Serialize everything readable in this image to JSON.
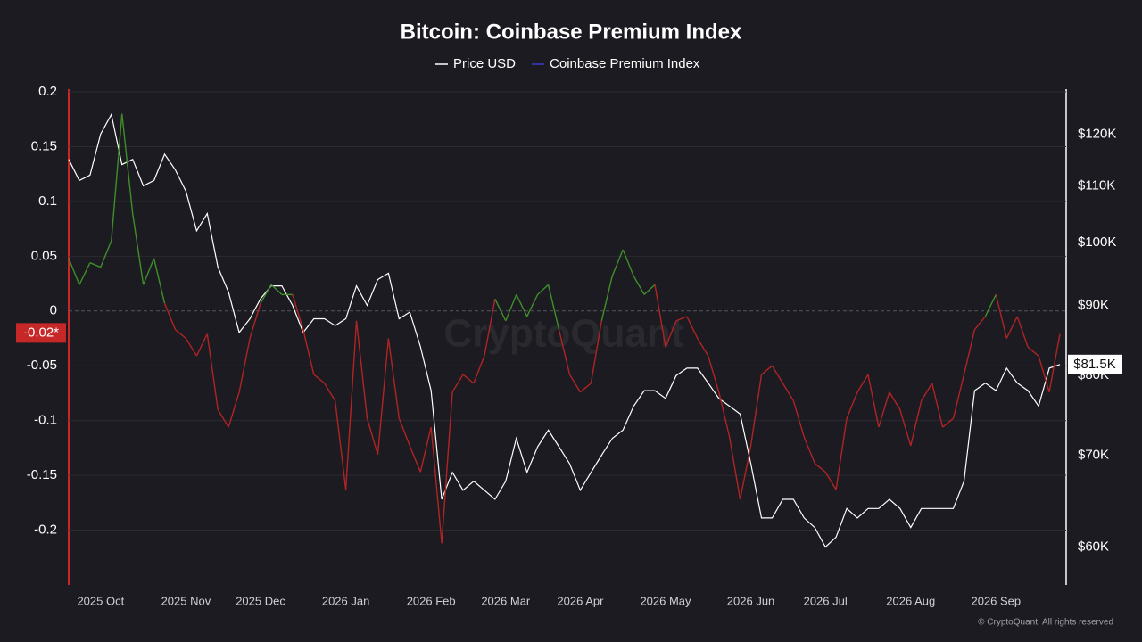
{
  "chart_data": {
    "type": "line",
    "title": "Bitcoin: Coinbase Premium Index",
    "watermark": "CryptoQuant",
    "footer": "© CryptoQuant. All rights reserved",
    "categories": [
      null,
      null,
      null,
      "2025 Oct",
      null,
      null,
      null,
      null,
      null,
      null,
      null,
      "2025 Nov",
      null,
      null,
      null,
      null,
      null,
      null,
      "2025 Dec",
      null,
      null,
      null,
      null,
      null,
      null,
      null,
      "2026 Jan",
      null,
      null,
      null,
      null,
      null,
      null,
      null,
      "2026 Feb",
      null,
      null,
      null,
      null,
      null,
      null,
      "2026 Mar",
      null,
      null,
      null,
      null,
      null,
      null,
      "2026 Apr",
      null,
      null,
      null,
      null,
      null,
      null,
      null,
      "2026 May",
      null,
      null,
      null,
      null,
      null,
      null,
      null,
      "2026 Jun",
      null,
      null,
      null,
      null,
      null,
      null,
      "2026 Jul",
      null,
      null,
      null,
      null,
      null,
      null,
      null,
      "2026 Aug",
      null,
      null,
      null,
      null,
      null,
      null,
      null,
      "2026 Sep",
      null,
      null,
      null,
      null,
      null,
      null
    ],
    "series": [
      {
        "name": "Price USD",
        "color": "#ffffff",
        "axis": "y2",
        "values": [
          115000,
          111000,
          112000,
          120000,
          124000,
          114000,
          115000,
          110000,
          111000,
          116000,
          113000,
          109000,
          102000,
          105000,
          96000,
          92000,
          86000,
          88000,
          91000,
          93000,
          93000,
          90000,
          86000,
          88000,
          88000,
          87000,
          88000,
          93000,
          90000,
          94000,
          95000,
          88000,
          89000,
          84000,
          78000,
          65000,
          68000,
          66000,
          67000,
          66000,
          65000,
          67000,
          72000,
          68000,
          71000,
          73000,
          71000,
          69000,
          66000,
          68000,
          70000,
          72000,
          73000,
          76000,
          78000,
          78000,
          77000,
          80000,
          81000,
          81000,
          79000,
          77000,
          76000,
          75000,
          69000,
          63000,
          63000,
          65000,
          65000,
          63000,
          62000,
          60000,
          61000,
          64000,
          63000,
          64000,
          64000,
          65000,
          64000,
          62000,
          64000,
          64000,
          64000,
          64000,
          67000,
          78000,
          79000,
          78000,
          81000,
          79000,
          78000,
          76000,
          81000,
          81500
        ]
      },
      {
        "name": "Coinbase Premium Index",
        "color": "#3a3ad0",
        "positive_color": "#3f8f29",
        "negative_color": "#b02424",
        "values": [
          0.048,
          0.024,
          0.044,
          0.04,
          0.064,
          0.18,
          0.089,
          0.024,
          0.048,
          0.007,
          -0.017,
          -0.025,
          -0.041,
          -0.021,
          -0.09,
          -0.106,
          -0.074,
          -0.025,
          0.007,
          0.024,
          0.015,
          0.015,
          -0.017,
          -0.058,
          -0.066,
          -0.082,
          -0.163,
          -0.009,
          -0.098,
          -0.131,
          -0.025,
          -0.098,
          -0.123,
          -0.147,
          -0.106,
          -0.212,
          -0.074,
          -0.058,
          -0.066,
          -0.041,
          0.011,
          -0.009,
          0.015,
          -0.005,
          0.015,
          0.024,
          -0.017,
          -0.058,
          -0.074,
          -0.066,
          -0.009,
          0.032,
          0.056,
          0.032,
          0.015,
          0.024,
          -0.033,
          -0.009,
          -0.005,
          -0.025,
          -0.041,
          -0.074,
          -0.115,
          -0.172,
          -0.123,
          -0.058,
          -0.05,
          -0.066,
          -0.082,
          -0.115,
          -0.139,
          -0.147,
          -0.163,
          -0.098,
          -0.074,
          -0.058,
          -0.106,
          -0.074,
          -0.09,
          -0.123,
          -0.082,
          -0.066,
          -0.106,
          -0.098,
          -0.058,
          -0.017,
          -0.005,
          0.015,
          -0.025,
          -0.005,
          -0.033,
          -0.041,
          -0.074,
          -0.021
        ]
      }
    ],
    "ylim": [
      -0.25,
      0.2
    ],
    "yticks": [
      0.2,
      0.15,
      0.1,
      0.05,
      0,
      -0.05,
      -0.1,
      -0.15,
      -0.2
    ],
    "y2lim": [
      56300,
      128800
    ],
    "y2_log": true,
    "y2ticks": [
      {
        "value": 120000,
        "label": "$120K"
      },
      {
        "value": 110000,
        "label": "$110K"
      },
      {
        "value": 100000,
        "label": "$100K"
      },
      {
        "value": 90000,
        "label": "$90K"
      },
      {
        "value": 80000,
        "label": "$80K"
      },
      {
        "value": 70000,
        "label": "$70K"
      },
      {
        "value": 60000,
        "label": "$60K"
      }
    ],
    "grid": true,
    "annotations": [
      {
        "value": -0.02,
        "label": "-0.02*",
        "axis": "y"
      },
      {
        "value": 81500,
        "label": "$81.5K",
        "axis": "y2"
      }
    ]
  }
}
